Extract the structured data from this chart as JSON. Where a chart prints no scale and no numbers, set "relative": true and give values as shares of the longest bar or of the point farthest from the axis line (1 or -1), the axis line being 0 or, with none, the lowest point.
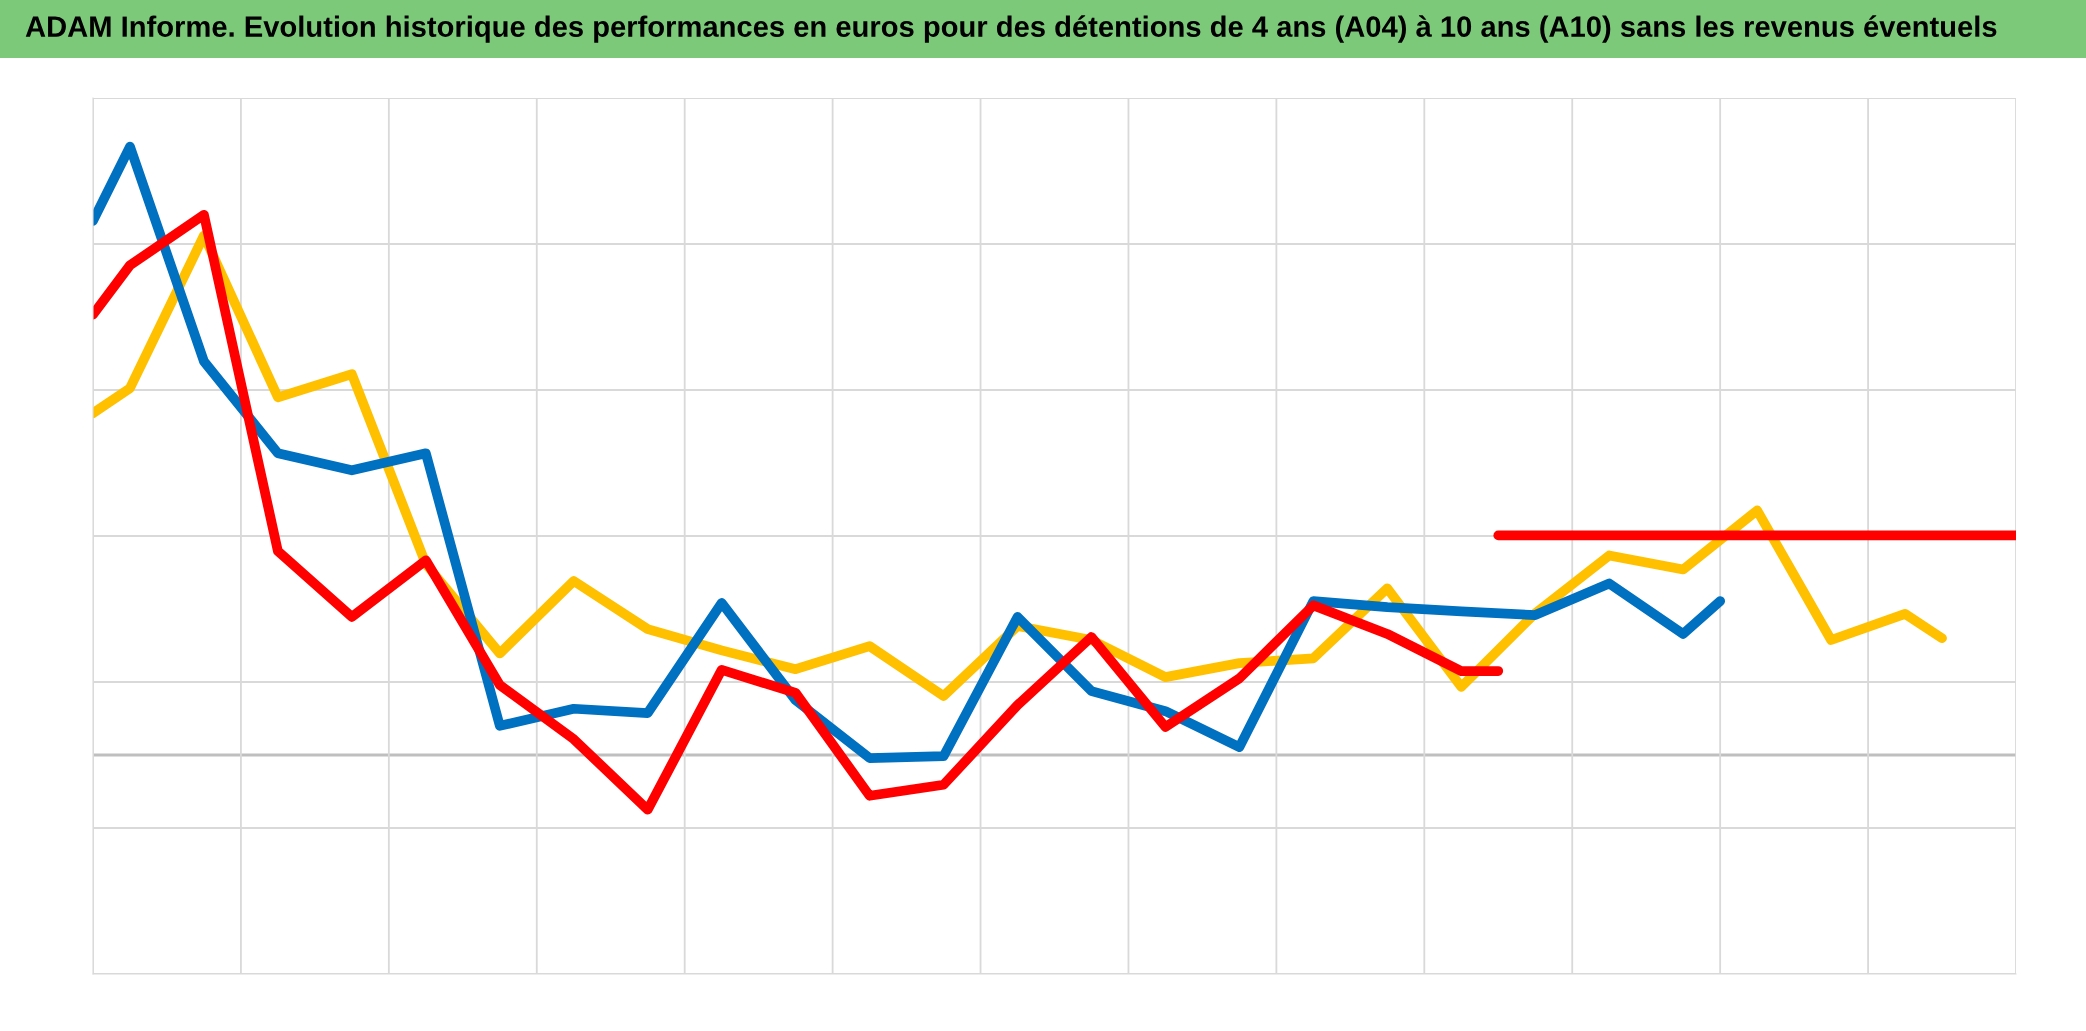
{
  "chart_data": {
    "type": "line",
    "relative": true,
    "grid": true,
    "tick_labels": false,
    "title": "ADAM Informe. Evolution historique des performances en euros pour des détentions de 4 ans (A04) à 10 ans (A10) sans les revenus éventuels",
    "categories": [
      null,
      null,
      null,
      null,
      null,
      null,
      null,
      null,
      null,
      null,
      null,
      null,
      null,
      null,
      null,
      null,
      null,
      null,
      null,
      null,
      null,
      null,
      null,
      null,
      null,
      null,
      null,
      null,
      null,
      null,
      null,
      null,
      null,
      null,
      null,
      null,
      null,
      null,
      null,
      null,
      null,
      null,
      null,
      null,
      null,
      null,
      null,
      null,
      null,
      null,
      null,
      null,
      null
    ],
    "series": [
      {
        "color": "#ffc000",
        "values": [
          0.562,
          0.603,
          null,
          0.854,
          null,
          0.588,
          null,
          0.626,
          null,
          0.314,
          null,
          0.167,
          null,
          0.286,
          null,
          0.207,
          null,
          0.172,
          null,
          0.141,
          null,
          0.179,
          null,
          0.097,
          null,
          0.212,
          null,
          0.189,
          null,
          0.128,
          null,
          0.151,
          null,
          0.159,
          null,
          0.274,
          null,
          0.112,
          null,
          0.233,
          null,
          0.328,
          null,
          0.305,
          null,
          0.402,
          null,
          0.189,
          null,
          0.232,
          0.192,
          null,
          null
        ]
      },
      {
        "color": "#0070c0",
        "values": [
          0.878,
          1.0,
          null,
          0.647,
          null,
          0.496,
          null,
          0.468,
          null,
          0.496,
          null,
          0.048,
          null,
          0.076,
          null,
          0.069,
          null,
          0.25,
          null,
          0.09,
          null,
          -0.005,
          null,
          -0.002,
          null,
          0.227,
          null,
          0.105,
          null,
          0.072,
          null,
          0.013,
          null,
          0.253,
          null,
          0.243,
          null,
          0.236,
          null,
          0.23,
          null,
          0.282,
          null,
          0.199,
          0.253,
          null,
          null,
          null,
          null,
          null,
          null,
          null,
          null
        ]
      },
      {
        "color": "#ff0000",
        "values": [
          0.724,
          0.805,
          null,
          0.888,
          null,
          0.335,
          null,
          0.227,
          null,
          0.32,
          null,
          0.115,
          null,
          0.026,
          null,
          -0.09,
          null,
          0.14,
          null,
          0.102,
          null,
          -0.067,
          null,
          -0.049,
          null,
          0.082,
          null,
          0.194,
          null,
          0.046,
          null,
          0.126,
          null,
          0.246,
          null,
          0.199,
          null,
          0.138,
          0.138,
          null,
          null,
          null,
          null,
          null,
          null,
          null,
          null,
          null,
          null,
          null,
          null,
          null,
          null
        ]
      },
      {
        "color": "#ff0000",
        "values": [
          null,
          null,
          null,
          null,
          null,
          null,
          null,
          null,
          null,
          null,
          null,
          null,
          null,
          null,
          null,
          null,
          null,
          null,
          null,
          null,
          null,
          null,
          null,
          null,
          null,
          null,
          null,
          null,
          null,
          null,
          null,
          null,
          null,
          null,
          null,
          null,
          null,
          null,
          0.361,
          null,
          null,
          null,
          null,
          null,
          null,
          null,
          null,
          null,
          null,
          null,
          null,
          null,
          0.361
        ]
      }
    ]
  }
}
